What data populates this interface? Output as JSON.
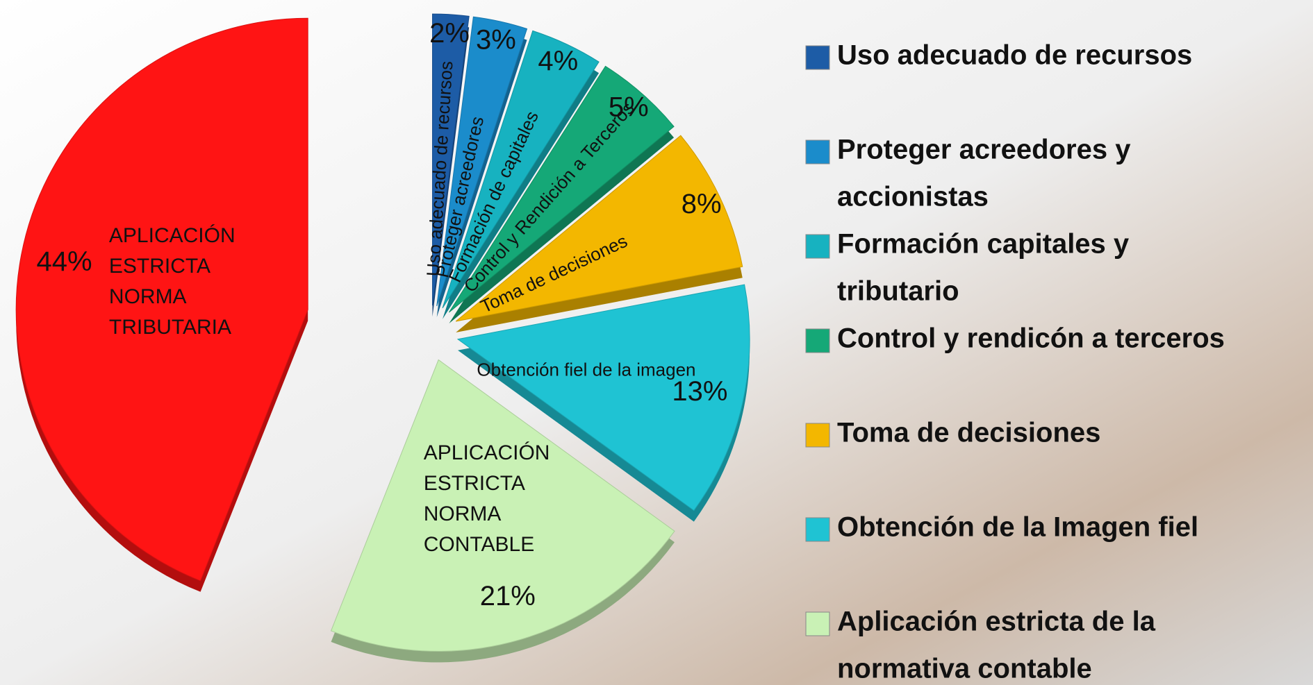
{
  "chart_data": {
    "type": "pie",
    "labels": [
      [
        "Uso adecuado de recursos"
      ],
      [
        "Proteger acreedores"
      ],
      [
        "Formación de capitales"
      ],
      [
        "Control y Rendición a Terceros"
      ],
      [
        "Toma de decisiones"
      ],
      [
        "Obtención fiel de la imagen"
      ],
      [
        "APLICACIÓN",
        "ESTRICTA",
        "NORMA",
        "CONTABLE"
      ],
      [
        "APLICACIÓN",
        "ESTRICTA",
        "NORMA",
        "TRIBUTARIA"
      ]
    ],
    "values": [
      2,
      3,
      4,
      5,
      8,
      13,
      21,
      44
    ],
    "value_labels": [
      "2%",
      "3%",
      "4%",
      "5%",
      "8%",
      "13%",
      "21%",
      "44%"
    ],
    "colors": [
      "#1d5ca6",
      "#1b8ccb",
      "#17b2c0",
      "#15a877",
      "#f3b700",
      "#1fc3d3",
      "#c9f1b5",
      "#ff1414"
    ],
    "legend": [
      {
        "lines": [
          "Uso adecuado de recursos"
        ],
        "color": "#1d5ca6"
      },
      {
        "lines": [
          "Proteger acreedores y",
          "accionistas"
        ],
        "color": "#1b8ccb"
      },
      {
        "lines": [
          "Formación capitales y",
          "tributario"
        ],
        "color": "#17b2c0"
      },
      {
        "lines": [
          "Control y rendicón a terceros"
        ],
        "color": "#15a877"
      },
      {
        "lines": [
          "Toma de decisiones"
        ],
        "color": "#f3b700"
      },
      {
        "lines": [
          "Obtención de la Imagen fiel"
        ],
        "color": "#1fc3d3"
      },
      {
        "lines": [
          "Aplicación estricta de la",
          "normativa contable"
        ],
        "color": "#c9f1b5"
      }
    ]
  }
}
